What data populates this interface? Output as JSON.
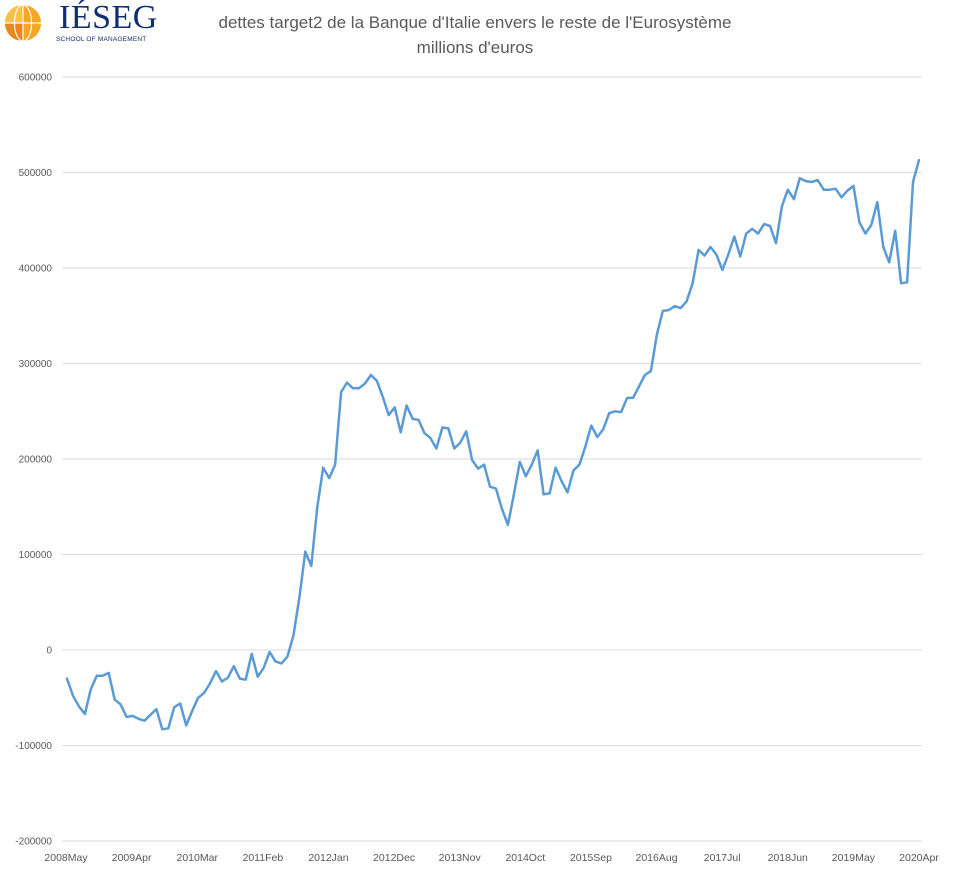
{
  "logo": {
    "name": "IÉSEG",
    "subtitle": "SCHOOL OF MANAGEMENT"
  },
  "colors": {
    "series": "#5b9bd5",
    "grid": "#d9d9d9",
    "text": "#595959"
  },
  "chart_data": {
    "type": "line",
    "title": "dettes target2 de la Banque d'Italie envers le reste de l'Eurosystème",
    "subtitle": "millions d'euros",
    "xlabel": "",
    "ylabel": "",
    "ylim": [
      -200000,
      600000
    ],
    "yticks": [
      -200000,
      -100000,
      0,
      100000,
      200000,
      300000,
      400000,
      500000,
      600000
    ],
    "ytick_labels": [
      "-200000",
      "-100000",
      "0",
      "100000",
      "200000",
      "300000",
      "400000",
      "500000",
      "600000"
    ],
    "xtick_labels": [
      "2008May",
      "2009Apr",
      "2010Mar",
      "2011Feb",
      "2012Jan",
      "2012Dec",
      "2013Nov",
      "2014Oct",
      "2015Sep",
      "2016Aug",
      "2017Jul",
      "2018Jun",
      "2019May",
      "2020Apr"
    ],
    "grid": true,
    "legend": "none",
    "series": [
      {
        "values": [
          -30000,
          -48000,
          -59000,
          -67000,
          -41000,
          -27000,
          -27000,
          -24000,
          -52000,
          -57000,
          -70000,
          -69000,
          -72000,
          -74000,
          -68000,
          -62000,
          -83000,
          -82000,
          -60000,
          -56000,
          -79000,
          -64000,
          -50000,
          -45000,
          -35000,
          -22000,
          -33000,
          -29000,
          -17000,
          -30000,
          -31000,
          -4000,
          -28000,
          -19000,
          -2000,
          -12000,
          -14000,
          -7000,
          15000,
          55000,
          103000,
          88000,
          149000,
          191000,
          180000,
          194000,
          270000,
          280000,
          274000,
          274000,
          279000,
          288000,
          282000,
          265000,
          246000,
          254000,
          228000,
          256000,
          242000,
          241000,
          227000,
          222000,
          211000,
          233000,
          232000,
          211000,
          217000,
          229000,
          199000,
          190000,
          194000,
          171000,
          169000,
          148000,
          131000,
          163000,
          197000,
          182000,
          194000,
          209000,
          163000,
          164000,
          191000,
          177000,
          165000,
          188000,
          194000,
          213000,
          235000,
          223000,
          231000,
          248000,
          250000,
          249000,
          264000,
          264000,
          276000,
          288000,
          292000,
          330000,
          355000,
          356000,
          360000,
          358000,
          365000,
          384000,
          419000,
          413000,
          422000,
          414000,
          398000,
          414000,
          433000,
          412000,
          436000,
          441000,
          436000,
          446000,
          444000,
          426000,
          465000,
          482000,
          472000,
          494000,
          491000,
          490000,
          492000,
          482000,
          482000,
          483000,
          474000,
          481000,
          486000,
          448000,
          436000,
          445000,
          469000,
          422000,
          406000,
          439000,
          384000,
          385000,
          490000,
          513000
        ]
      }
    ]
  }
}
